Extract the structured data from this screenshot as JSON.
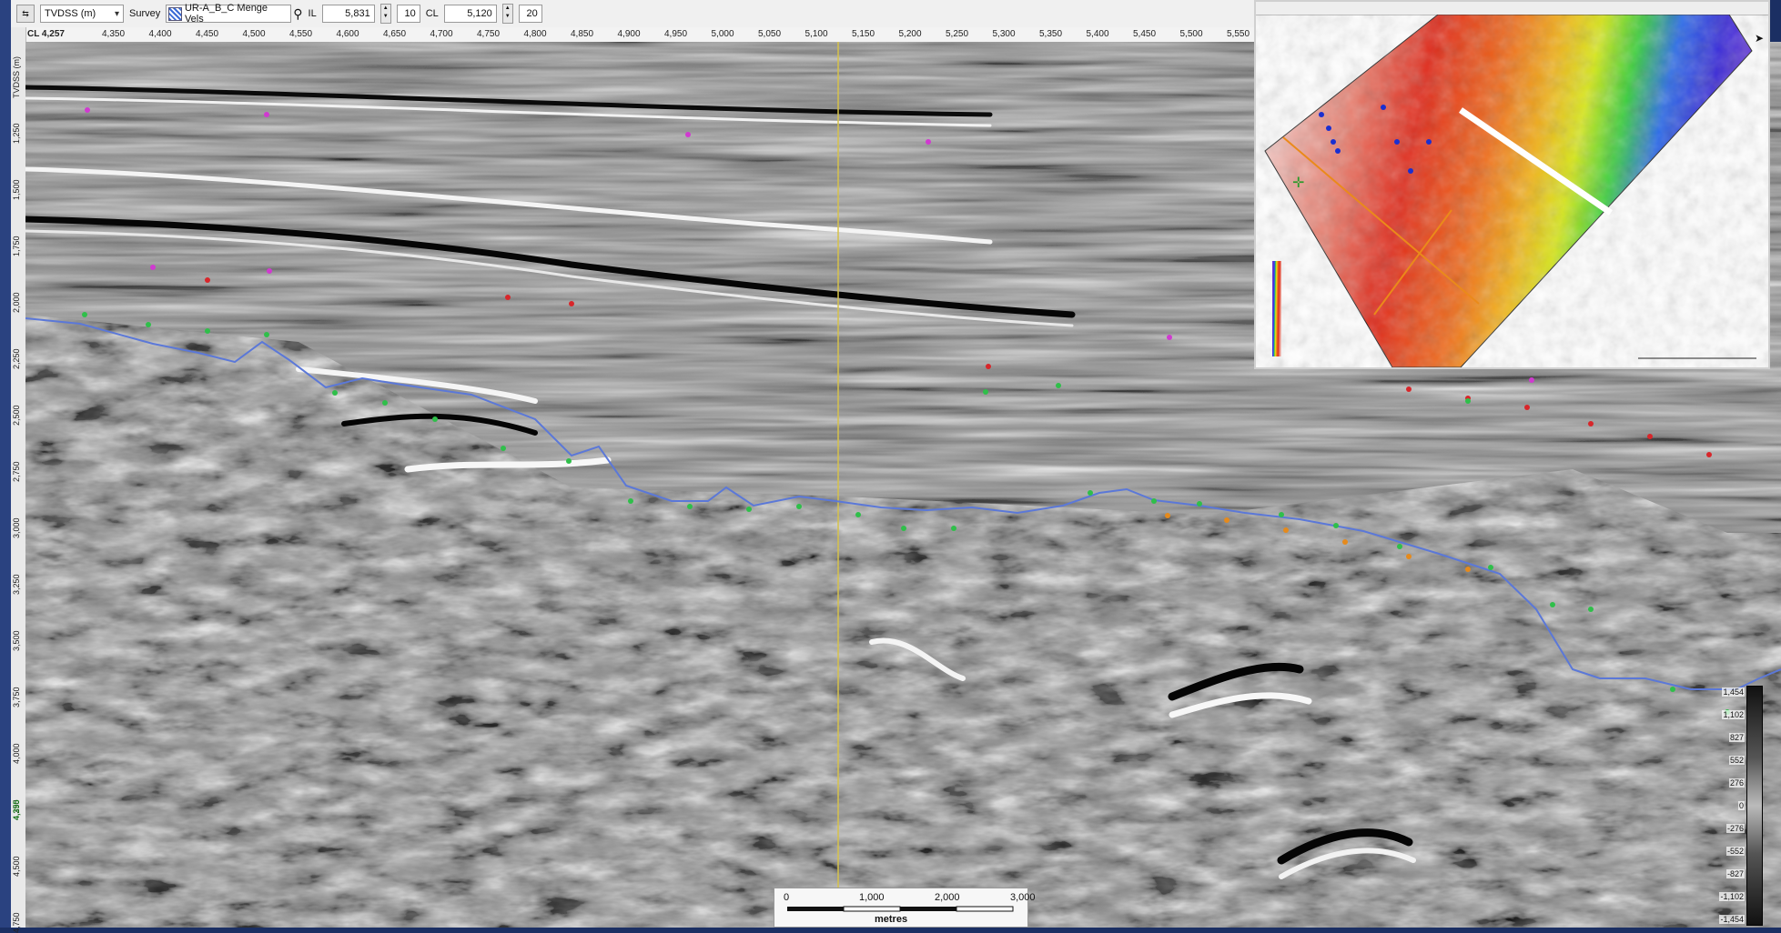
{
  "toolbar": {
    "domain_select": "TVDSS (m)",
    "survey_label": "Survey",
    "survey_select": "UR-A_B_C Menge Vels",
    "il_label": "IL",
    "il_value": "5,831",
    "il_step": "10",
    "cl_label": "CL",
    "cl_value": "5,120",
    "cl_step": "20"
  },
  "ruler": {
    "cl_readout": "CL 4,257",
    "ticks": [
      "4,350",
      "4,400",
      "4,450",
      "4,500",
      "4,550",
      "4,600",
      "4,650",
      "4,700",
      "4,750",
      "4,800",
      "4,850",
      "4,900",
      "4,950",
      "5,000",
      "5,050",
      "5,100",
      "5,150",
      "5,200",
      "5,250",
      "5,300",
      "5,350",
      "5,400",
      "5,450",
      "5,500",
      "5,550"
    ]
  },
  "vruler": {
    "title": "TVDSS (m)",
    "ticks": [
      "1,250",
      "1,500",
      "1,750",
      "2,000",
      "2,250",
      "2,500",
      "2,750",
      "3,000",
      "3,250",
      "3,500",
      "3,750",
      "4,000",
      "4,250",
      "4,500",
      "4,750"
    ],
    "cursor_readout": "4,395"
  },
  "colorbar": {
    "labels": [
      "1,454",
      "1,102",
      "827",
      "552",
      "276",
      "0",
      "-276",
      "-552",
      "-827",
      "-1,102",
      "-1,454"
    ]
  },
  "scalebar": {
    "ticks": [
      "0",
      "1,000",
      "2,000",
      "3,000"
    ],
    "unit": "metres"
  },
  "colors": {
    "horizon_blue": "#5b78d8",
    "pick_green": "#2fbf4a",
    "pick_red": "#d8262a",
    "pick_magenta": "#d03ad0",
    "pick_orange": "#e58a1c",
    "cursor_line": "#d6c24a"
  }
}
